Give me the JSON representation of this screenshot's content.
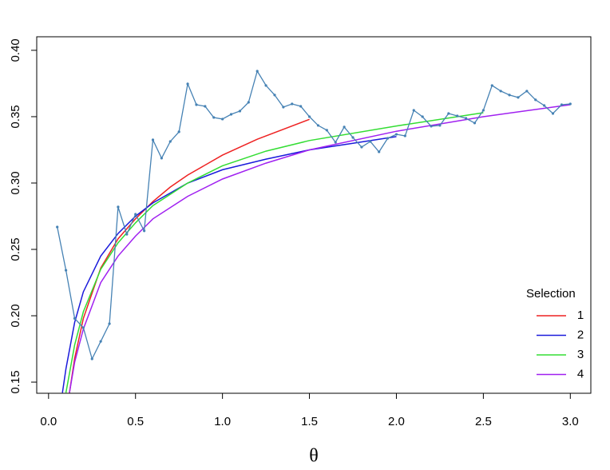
{
  "chart_data": {
    "type": "line",
    "x_label": "θ",
    "xlim": [
      -0.068,
      3.118
    ],
    "ylim": [
      0.1416,
      0.4102
    ],
    "xticks": [
      {
        "value": 0,
        "label": "0.0"
      },
      0.5,
      {
        "value": 1,
        "label": "1.0"
      },
      1.5,
      {
        "value": 2,
        "label": "2.0"
      },
      2.5,
      {
        "value": 3,
        "label": "3.0"
      }
    ],
    "yticks": [
      0.15,
      {
        "value": 0.2,
        "label": "0.20"
      },
      0.25,
      {
        "value": 0.3,
        "label": "0.30"
      },
      0.35,
      {
        "value": 0.4,
        "label": "0.40"
      }
    ],
    "legend_title": "Selection",
    "legend_position": "bottomright",
    "points": {
      "color": "#4682b4",
      "x": [
        0.05,
        0.1,
        0.15,
        0.2,
        0.25,
        0.3,
        0.35,
        0.4,
        0.45,
        0.5,
        0.55,
        0.6,
        0.65,
        0.7,
        0.75,
        0.8,
        0.85,
        0.9,
        0.95,
        1.0,
        1.05,
        1.1,
        1.15,
        1.2,
        1.25,
        1.3,
        1.35,
        1.4,
        1.45,
        1.5,
        1.55,
        1.6,
        1.65,
        1.7,
        1.75,
        1.8,
        1.85,
        1.9,
        1.95,
        2.0,
        2.05,
        2.1,
        2.15,
        2.2,
        2.25,
        2.3,
        2.35,
        2.4,
        2.45,
        2.5,
        2.55,
        2.6,
        2.65,
        2.7,
        2.75,
        2.8,
        2.85,
        2.9,
        2.95,
        3.0
      ],
      "values": [
        0.2669,
        0.2343,
        0.198,
        0.191,
        0.1675,
        0.1807,
        0.194,
        0.282,
        0.2614,
        0.2765,
        0.264,
        0.3325,
        0.3187,
        0.3313,
        0.3386,
        0.3747,
        0.359,
        0.3578,
        0.3494,
        0.3482,
        0.3518,
        0.3542,
        0.3608,
        0.3843,
        0.3735,
        0.3663,
        0.3572,
        0.3596,
        0.3578,
        0.35,
        0.3434,
        0.3398,
        0.3307,
        0.3422,
        0.3343,
        0.3271,
        0.3313,
        0.3235,
        0.3337,
        0.3367,
        0.3355,
        0.3548,
        0.35,
        0.3428,
        0.3434,
        0.3524,
        0.3506,
        0.3488,
        0.3452,
        0.3548,
        0.3735,
        0.3693,
        0.3663,
        0.3645,
        0.3693,
        0.3627,
        0.3584,
        0.3524,
        0.359,
        0.3596
      ]
    },
    "series": [
      {
        "name": "1",
        "color": "#ee2222",
        "x": [
          0.12,
          0.15,
          0.2,
          0.3,
          0.4,
          0.5,
          0.6,
          0.7,
          0.8,
          1.0,
          1.2,
          1.5
        ],
        "values": [
          0.142,
          0.168,
          0.198,
          0.236,
          0.258,
          0.273,
          0.286,
          0.297,
          0.306,
          0.321,
          0.333,
          0.348
        ]
      },
      {
        "name": "2",
        "color": "#1a1adb",
        "x": [
          0.08,
          0.1,
          0.15,
          0.2,
          0.3,
          0.4,
          0.5,
          0.6,
          0.8,
          1.0,
          1.25,
          1.5,
          1.75,
          2.0
        ],
        "values": [
          0.142,
          0.16,
          0.195,
          0.218,
          0.245,
          0.262,
          0.275,
          0.285,
          0.3,
          0.31,
          0.318,
          0.325,
          0.33,
          0.335
        ]
      },
      {
        "name": "3",
        "color": "#33dd33",
        "x": [
          0.1,
          0.15,
          0.2,
          0.3,
          0.4,
          0.5,
          0.6,
          0.8,
          1.0,
          1.25,
          1.5,
          2.0,
          2.5
        ],
        "values": [
          0.142,
          0.178,
          0.203,
          0.235,
          0.255,
          0.27,
          0.283,
          0.3,
          0.313,
          0.324,
          0.332,
          0.343,
          0.353
        ]
      },
      {
        "name": "4",
        "color": "#a020f0",
        "x": [
          0.12,
          0.15,
          0.2,
          0.3,
          0.4,
          0.5,
          0.6,
          0.8,
          1.0,
          1.25,
          1.5,
          2.0,
          2.5,
          3.0
        ],
        "values": [
          0.142,
          0.165,
          0.19,
          0.225,
          0.245,
          0.26,
          0.273,
          0.29,
          0.303,
          0.315,
          0.325,
          0.339,
          0.35,
          0.359
        ]
      }
    ]
  }
}
